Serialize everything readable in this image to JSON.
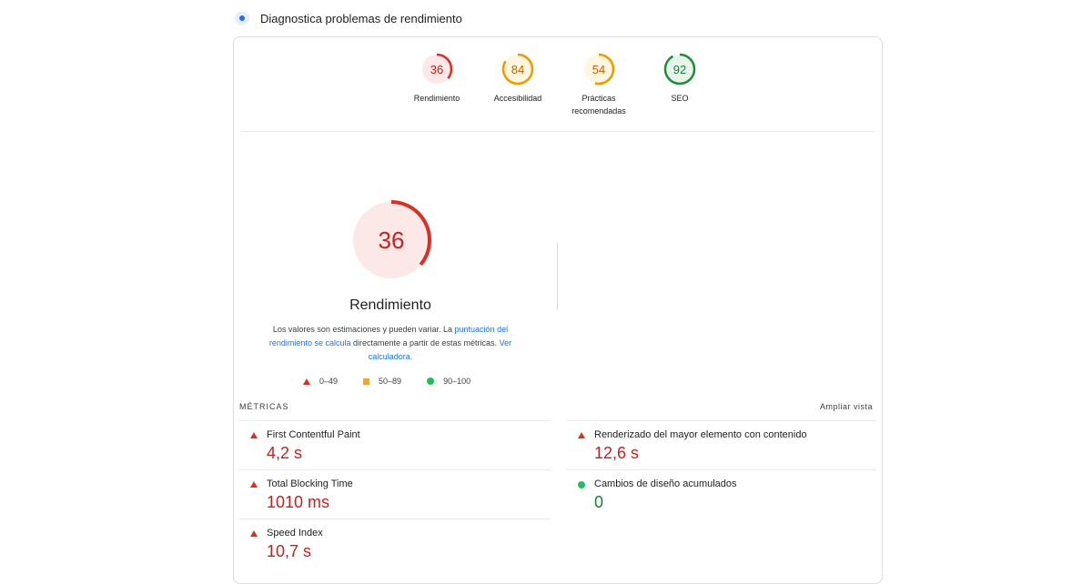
{
  "header": {
    "title": "Diagnostica problemas de rendimiento"
  },
  "gauges": [
    {
      "score": "36",
      "label": "Rendimiento",
      "color": "#d93025",
      "fill": "#fce8e6",
      "fraction": 0.36
    },
    {
      "score": "84",
      "label": "Accesibilidad",
      "color": "#f29900",
      "fill": "#fef7e0",
      "fraction": 0.84
    },
    {
      "score": "54",
      "label_line1": "Prácticas",
      "label_line2": "recomendadas",
      "color": "#f29900",
      "fill": "#fef7e0",
      "fraction": 0.54
    },
    {
      "score": "92",
      "label": "SEO",
      "color": "#1e8e3e",
      "fill": "#e6f4ea",
      "fraction": 0.92
    }
  ],
  "main_gauge": {
    "score": "36",
    "title": "Rendimiento",
    "color": "#d93025",
    "fraction": 0.36
  },
  "description": {
    "text1": "Los valores son estimaciones y pueden variar. La ",
    "link1": "puntuación del rendimiento se calcula",
    "text2": " directamente a partir de estas métricas. ",
    "link2": "Ver calculadora."
  },
  "legend": [
    {
      "icon": "red-triangle-icon",
      "label": "0–49"
    },
    {
      "icon": "orange-square-icon",
      "label": "50–89"
    },
    {
      "icon": "green-circle-icon",
      "label": "90–100"
    }
  ],
  "metrics": {
    "heading": "MÉTRICAS",
    "expand_label": "Ampliar vista",
    "items": [
      {
        "label": "First Contentful Paint",
        "value": "4,2 s",
        "status": "poor"
      },
      {
        "label": "Renderizado del mayor elemento con contenido",
        "value": "12,6 s",
        "status": "poor"
      },
      {
        "label": "Total Blocking Time",
        "value": "1010 ms",
        "status": "poor"
      },
      {
        "label": "Cambios de diseño acumulados",
        "value": "0",
        "status": "good"
      },
      {
        "label": "Speed Index",
        "value": "10,7 s",
        "status": "poor"
      }
    ]
  }
}
